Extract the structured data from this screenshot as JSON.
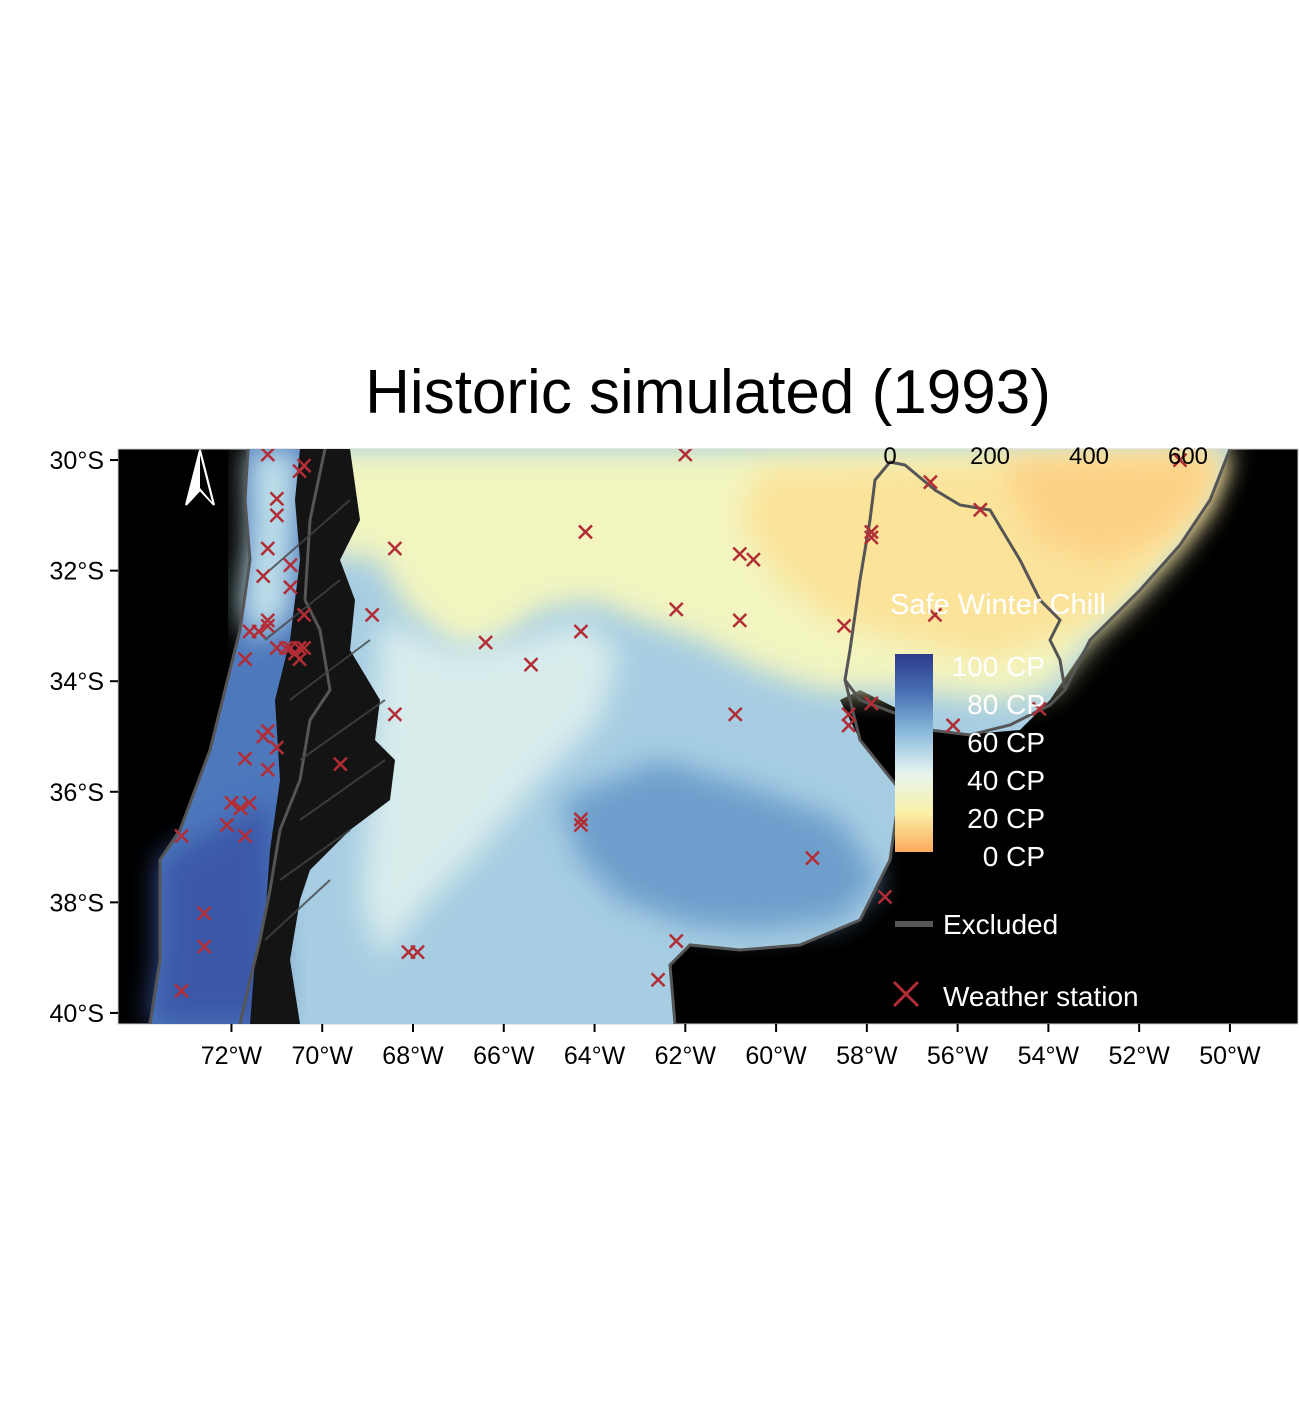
{
  "title": "Historic simulated (1993)",
  "map": {
    "lon_range": [
      -74.5,
      -48.5
    ],
    "lat_range": [
      -40.2,
      -29.8
    ],
    "background_color": "#000000",
    "excluded_color": "#141414",
    "border_color": "#555555",
    "station_color": "#b22d35"
  },
  "axes": {
    "y_ticks": [
      {
        "lat": -30,
        "label": "30°S"
      },
      {
        "lat": -32,
        "label": "32°S"
      },
      {
        "lat": -34,
        "label": "34°S"
      },
      {
        "lat": -36,
        "label": "36°S"
      },
      {
        "lat": -38,
        "label": "38°S"
      },
      {
        "lat": -40,
        "label": "40°S"
      }
    ],
    "x_ticks": [
      {
        "lon": -72,
        "label": "72°W"
      },
      {
        "lon": -70,
        "label": "70°W"
      },
      {
        "lon": -68,
        "label": "68°W"
      },
      {
        "lon": -66,
        "label": "66°W"
      },
      {
        "lon": -64,
        "label": "64°W"
      },
      {
        "lon": -62,
        "label": "62°W"
      },
      {
        "lon": -60,
        "label": "60°W"
      },
      {
        "lon": -58,
        "label": "58°W"
      },
      {
        "lon": -56,
        "label": "56°W"
      },
      {
        "lon": -54,
        "label": "54°W"
      },
      {
        "lon": -52,
        "label": "52°W"
      },
      {
        "lon": -50,
        "label": "50°W"
      }
    ]
  },
  "scale_bar": {
    "labels": [
      "0",
      "200",
      "400",
      "600"
    ]
  },
  "legend": {
    "title": "Safe Winter Chill",
    "colorbar_labels": [
      "100 CP",
      "80 CP",
      "60 CP",
      "40 CP",
      "20 CP",
      "0 CP"
    ],
    "colorbar_stops": [
      "#2c3a8c",
      "#4a72b4",
      "#8cbcdc",
      "#e6f4f0",
      "#faf2a8",
      "#fca95c"
    ],
    "excluded_label": "Excluded",
    "station_label": "Weather station"
  },
  "stations": [
    [
      -71.2,
      -29.9
    ],
    [
      -71.0,
      -30.7
    ],
    [
      -71.0,
      -31.0
    ],
    [
      -71.2,
      -31.6
    ],
    [
      -71.3,
      -32.1
    ],
    [
      -70.7,
      -31.9
    ],
    [
      -70.7,
      -32.3
    ],
    [
      -70.5,
      -30.2
    ],
    [
      -70.4,
      -30.1
    ],
    [
      -71.2,
      -32.9
    ],
    [
      -71.2,
      -33.0
    ],
    [
      -71.4,
      -33.1
    ],
    [
      -71.6,
      -33.1
    ],
    [
      -71.7,
      -33.6
    ],
    [
      -71.0,
      -33.4
    ],
    [
      -70.8,
      -33.4
    ],
    [
      -70.7,
      -33.4
    ],
    [
      -70.6,
      -33.5
    ],
    [
      -70.5,
      -33.4
    ],
    [
      -70.5,
      -33.6
    ],
    [
      -70.4,
      -33.4
    ],
    [
      -70.4,
      -32.8
    ],
    [
      -71.2,
      -34.9
    ],
    [
      -71.3,
      -35.0
    ],
    [
      -71.0,
      -35.2
    ],
    [
      -71.2,
      -35.6
    ],
    [
      -71.7,
      -35.4
    ],
    [
      -72.0,
      -36.2
    ],
    [
      -71.8,
      -36.3
    ],
    [
      -71.6,
      -36.2
    ],
    [
      -72.1,
      -36.6
    ],
    [
      -71.7,
      -36.8
    ],
    [
      -73.1,
      -36.8
    ],
    [
      -72.6,
      -38.2
    ],
    [
      -72.6,
      -38.8
    ],
    [
      -73.1,
      -39.6
    ],
    [
      -68.9,
      -32.8
    ],
    [
      -68.4,
      -31.6
    ],
    [
      -68.4,
      -34.6
    ],
    [
      -69.6,
      -35.5
    ],
    [
      -68.1,
      -38.9
    ],
    [
      -67.9,
      -38.9
    ],
    [
      -66.4,
      -33.3
    ],
    [
      -65.4,
      -33.7
    ],
    [
      -64.2,
      -31.3
    ],
    [
      -64.3,
      -33.1
    ],
    [
      -64.3,
      -36.6
    ],
    [
      -64.3,
      -36.5
    ],
    [
      -62.0,
      -29.9
    ],
    [
      -62.2,
      -32.7
    ],
    [
      -62.2,
      -38.7
    ],
    [
      -62.6,
      -39.4
    ],
    [
      -60.8,
      -31.7
    ],
    [
      -60.5,
      -31.8
    ],
    [
      -60.8,
      -32.9
    ],
    [
      -60.9,
      -34.6
    ],
    [
      -59.2,
      -37.2
    ],
    [
      -58.5,
      -33.0
    ],
    [
      -57.9,
      -31.3
    ],
    [
      -57.9,
      -31.4
    ],
    [
      -58.4,
      -34.8
    ],
    [
      -58.4,
      -34.6
    ],
    [
      -57.9,
      -34.4
    ],
    [
      -57.6,
      -37.9
    ],
    [
      -56.6,
      -30.4
    ],
    [
      -56.5,
      -32.8
    ],
    [
      -55.5,
      -30.9
    ],
    [
      -54.2,
      -34.5
    ],
    [
      -56.1,
      -34.8
    ],
    [
      -51.1,
      -30.0
    ]
  ]
}
